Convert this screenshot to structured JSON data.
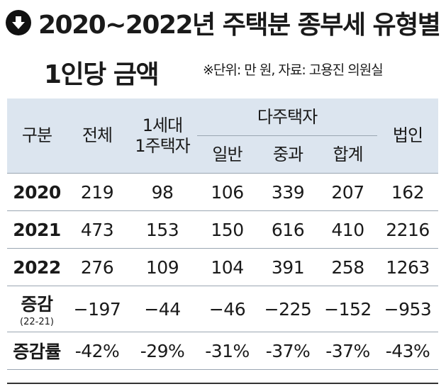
{
  "header": {
    "title_line1": "2020~2022년 주택분 종부세 유형별",
    "title_line2": "1인당 금액",
    "note": "※단위: 만 원, 자료: 고용진 의원실",
    "icon": "arrow-down-circle-icon"
  },
  "table": {
    "columns": {
      "category": "구분",
      "total": "전체",
      "single_house_line1": "1세대",
      "single_house_line2": "1주택자",
      "multi_house": "다주택자",
      "general": "일반",
      "heavy": "중과",
      "sum": "합계",
      "corporate": "법인"
    },
    "rows": [
      {
        "label": "2020",
        "sublabel": "",
        "values": [
          "219",
          "98",
          "106",
          "339",
          "207",
          "162"
        ]
      },
      {
        "label": "2021",
        "sublabel": "",
        "values": [
          "473",
          "153",
          "150",
          "616",
          "410",
          "2216"
        ]
      },
      {
        "label": "2022",
        "sublabel": "",
        "values": [
          "276",
          "109",
          "104",
          "391",
          "258",
          "1263"
        ]
      },
      {
        "label": "증감",
        "sublabel": "(22-21)",
        "values": [
          "−197",
          "−44",
          "−46",
          "−225",
          "−152",
          "−953"
        ]
      },
      {
        "label": "증감률",
        "sublabel": "",
        "values": [
          "-42%",
          "-29%",
          "-31%",
          "-37%",
          "-37%",
          "-43%"
        ]
      }
    ]
  },
  "colors": {
    "header_bg": "#dce5ef",
    "icon_bg": "#111111"
  }
}
